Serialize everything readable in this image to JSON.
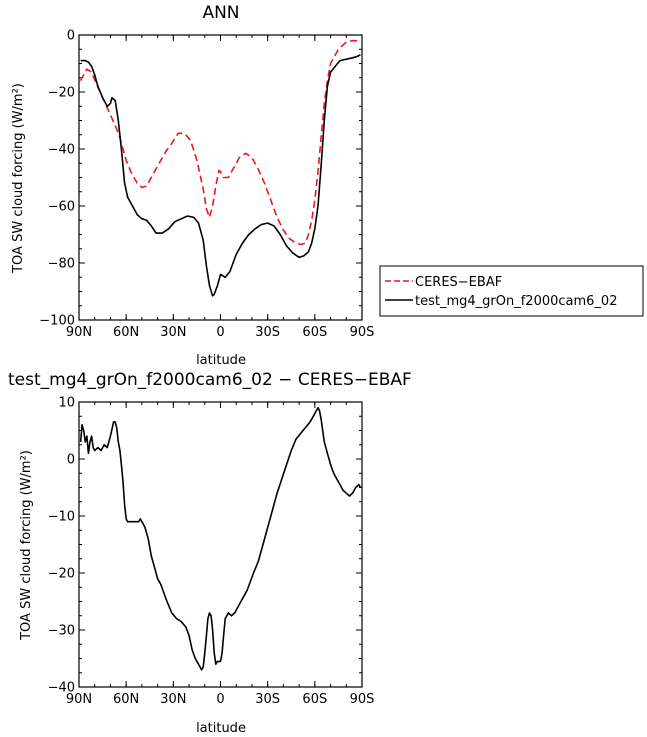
{
  "colors": {
    "ceres": "#e8191c",
    "model": "#000000",
    "diff": "#000000"
  },
  "chart_data": [
    {
      "type": "line",
      "title": "ANN",
      "xlabel": "latitude",
      "ylabel": "TOA SW cloud forcing (W/m²)",
      "xlim": [
        90,
        -90
      ],
      "ylim": [
        -100,
        0
      ],
      "xticks": [
        90,
        60,
        30,
        0,
        -30,
        -60,
        -90
      ],
      "xtick_labels": [
        "90N",
        "60N",
        "30N",
        "0",
        "30S",
        "60S",
        "90S"
      ],
      "yticks": [
        -100,
        -80,
        -60,
        -40,
        -20,
        0
      ],
      "ytick_labels": [
        "−100",
        "−80",
        "−60",
        "−40",
        "−20",
        "0"
      ],
      "legend_position": "right",
      "series": [
        {
          "name": "CERES−EBAF",
          "style": "dashed",
          "color": "#e8191c",
          "x": [
            89,
            87,
            85,
            82,
            79,
            75,
            70,
            66,
            64,
            62,
            60,
            57,
            53,
            50,
            47,
            44,
            40,
            35,
            31,
            27,
            23,
            19,
            15,
            11,
            9,
            7,
            5,
            3,
            1,
            0,
            -2,
            -5,
            -8,
            -12,
            -16,
            -20,
            -24,
            -28,
            -32,
            -36,
            -40,
            -44,
            -48,
            -51,
            -54,
            -56,
            -58,
            -60,
            -62,
            -64,
            -66,
            -68,
            -70,
            -75,
            -80,
            -84,
            -87,
            -89
          ],
          "y": [
            -16,
            -14,
            -12,
            -13,
            -17,
            -22,
            -28,
            -33,
            -36,
            -40,
            -44,
            -48,
            -52,
            -53.5,
            -53,
            -50,
            -46,
            -41,
            -38,
            -34.5,
            -34.5,
            -37,
            -44,
            -54,
            -61,
            -64,
            -60,
            -53,
            -47.5,
            -48,
            -50,
            -50,
            -47,
            -43,
            -41.5,
            -43,
            -47,
            -52,
            -58,
            -64,
            -68.5,
            -71.5,
            -73,
            -73.5,
            -73,
            -70,
            -65,
            -58,
            -48,
            -36,
            -24,
            -16,
            -10,
            -5,
            -2.5,
            -2,
            -2,
            -2
          ]
        },
        {
          "name": "test_mg4_grOn_f2000cam6_02",
          "style": "solid",
          "color": "#000000",
          "x": [
            89,
            86,
            84,
            82,
            80,
            78,
            75,
            72,
            70,
            69,
            67,
            65,
            63,
            61,
            59,
            56,
            53,
            50,
            47,
            44,
            41,
            37,
            33,
            29,
            25,
            21,
            17,
            14,
            11,
            9,
            7,
            5,
            4,
            2,
            0,
            -3,
            -6,
            -10,
            -14,
            -18,
            -22,
            -26,
            -30,
            -34,
            -38,
            -42,
            -46,
            -50,
            -53,
            -56,
            -58,
            -60,
            -62,
            -64,
            -66,
            -68,
            -70,
            -73,
            -76,
            -80,
            -84,
            -87,
            -89
          ],
          "y": [
            -9,
            -9,
            -9.5,
            -11,
            -14,
            -18,
            -22,
            -25,
            -24,
            -22,
            -23,
            -30,
            -40,
            -52,
            -57,
            -60,
            -63,
            -64.5,
            -65,
            -67,
            -69.5,
            -69.5,
            -68,
            -65.5,
            -64.5,
            -63.5,
            -64,
            -66,
            -72,
            -81,
            -88,
            -91.5,
            -91,
            -88,
            -84,
            -85,
            -83,
            -77,
            -73,
            -70,
            -68,
            -66.5,
            -66,
            -67,
            -70,
            -74,
            -76.5,
            -78,
            -77.5,
            -76,
            -73,
            -68,
            -60,
            -46,
            -30,
            -18,
            -13,
            -11,
            -9,
            -8.5,
            -8,
            -7.5,
            -7
          ]
        }
      ]
    },
    {
      "type": "line",
      "title": "test_mg4_grOn_f2000cam6_02 − CERES−EBAF",
      "xlabel": "latitude",
      "ylabel": "TOA SW cloud forcing (W/m²)",
      "xlim": [
        90,
        -90
      ],
      "ylim": [
        -40,
        10
      ],
      "xticks": [
        90,
        60,
        30,
        0,
        -30,
        -60,
        -90
      ],
      "xtick_labels": [
        "90N",
        "60N",
        "30N",
        "0",
        "30S",
        "60S",
        "90S"
      ],
      "yticks": [
        -40,
        -30,
        -20,
        -10,
        0,
        10
      ],
      "ytick_labels": [
        "−40",
        "−30",
        "−20",
        "−10",
        "0",
        "10"
      ],
      "series": [
        {
          "name": "",
          "style": "solid",
          "color": "#000000",
          "x": [
            89,
            88,
            87,
            86,
            85,
            84,
            83,
            82,
            81,
            80,
            78,
            76,
            74,
            72,
            70,
            68,
            67,
            66,
            65,
            64,
            63,
            62,
            61,
            60,
            59,
            58,
            56,
            54,
            52,
            51,
            50,
            48,
            46,
            44,
            42,
            40,
            38,
            36,
            34,
            31,
            28,
            25,
            22,
            20,
            18,
            16,
            14,
            12,
            11,
            10,
            9,
            8,
            7,
            6,
            5,
            4,
            3,
            2,
            1,
            0,
            -1,
            -2,
            -3,
            -5,
            -7,
            -9,
            -11,
            -13,
            -15,
            -17,
            -19,
            -21,
            -24,
            -27,
            -30,
            -33,
            -36,
            -39,
            -42,
            -45,
            -48,
            -51,
            -54,
            -57,
            -59,
            -61,
            -62,
            -63,
            -64,
            -65,
            -66,
            -68,
            -70,
            -72,
            -74,
            -76,
            -78,
            -80,
            -82,
            -84,
            -86,
            -88,
            -89
          ],
          "y": [
            3,
            6,
            5,
            3,
            4,
            1,
            3,
            4,
            2,
            1.5,
            2,
            1.5,
            2.5,
            2,
            4,
            6.5,
            6.5,
            5.5,
            3,
            1.5,
            -1,
            -4,
            -8,
            -10.5,
            -11,
            -11,
            -11,
            -11,
            -11,
            -10.5,
            -11,
            -12,
            -14,
            -17,
            -19,
            -21,
            -22,
            -23.5,
            -25,
            -27,
            -28,
            -28.5,
            -29.5,
            -31,
            -33.5,
            -35,
            -36,
            -37,
            -36.5,
            -34,
            -31,
            -28,
            -27,
            -27.5,
            -30,
            -34,
            -36,
            -35.5,
            -35.5,
            -35.5,
            -34,
            -31,
            -28,
            -27,
            -27.5,
            -27,
            -26,
            -25,
            -24,
            -23,
            -21.5,
            -20,
            -18,
            -15,
            -12,
            -9,
            -6,
            -3.5,
            -1,
            1.5,
            3.5,
            4.5,
            5.5,
            6.5,
            7.5,
            8.5,
            9,
            8.5,
            7,
            5,
            3,
            1,
            -1,
            -2.5,
            -3.5,
            -4.5,
            -5.5,
            -6,
            -6.5,
            -6,
            -5,
            -4.5,
            -5
          ]
        }
      ]
    }
  ]
}
